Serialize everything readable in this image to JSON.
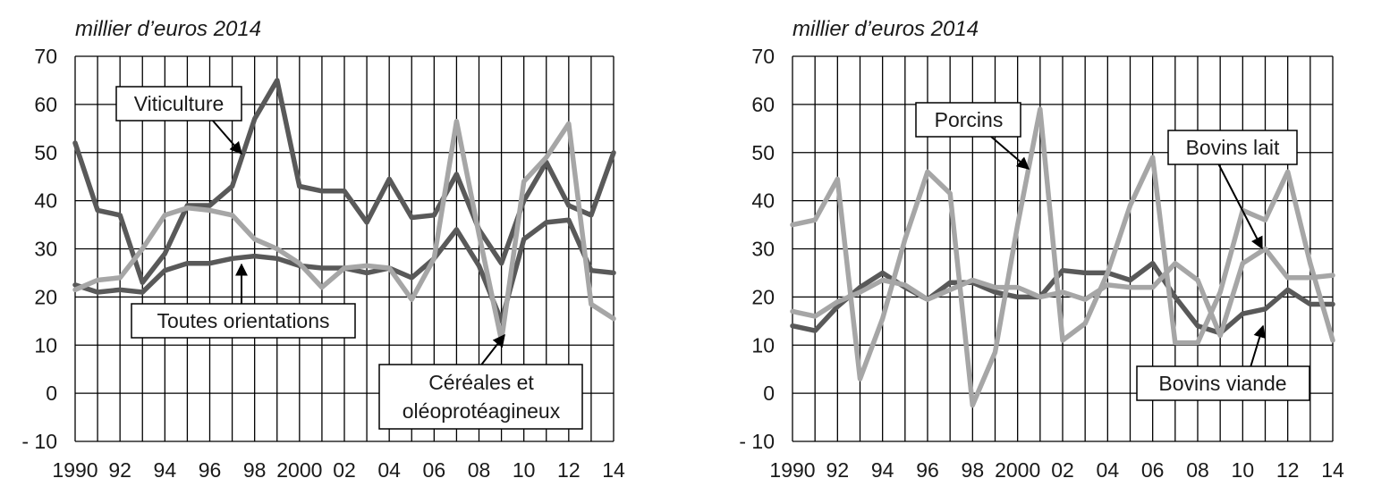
{
  "chart_data": [
    {
      "type": "line",
      "unit_label": "millier d’euros 2014",
      "x": [
        1990,
        1991,
        1992,
        1993,
        1994,
        1995,
        1996,
        1997,
        1998,
        1999,
        2000,
        2001,
        2002,
        2003,
        2004,
        2005,
        2006,
        2007,
        2008,
        2009,
        2010,
        2011,
        2012,
        2013,
        2014
      ],
      "x_tick_labels": [
        "1990",
        "",
        "92",
        "",
        "94",
        "",
        "96",
        "",
        "98",
        "",
        "2000",
        "",
        "02",
        "",
        "04",
        "",
        "06",
        "",
        "08",
        "",
        "10",
        "",
        "12",
        "",
        "14"
      ],
      "y_ticks": [
        -10,
        0,
        10,
        20,
        30,
        40,
        50,
        60,
        70
      ],
      "y_tick_labels": [
        "- 10",
        "0",
        "10",
        "20",
        "30",
        "40",
        "50",
        "60",
        "70"
      ],
      "ylim": [
        -10,
        70
      ],
      "grid": true,
      "series": [
        {
          "name": "Viticulture",
          "color": "#595959",
          "values": [
            52,
            38,
            37,
            23,
            29,
            39,
            39,
            43,
            57,
            65,
            43,
            42,
            42,
            35.5,
            44.5,
            36.5,
            37,
            45.5,
            34,
            27,
            40,
            48,
            39,
            37,
            50
          ]
        },
        {
          "name": "Toutes orientations",
          "color": "#595959",
          "values": [
            22.5,
            21,
            21.5,
            21,
            25.5,
            27,
            27,
            28,
            28.5,
            28,
            26.5,
            26,
            26,
            25,
            26,
            24,
            28,
            34,
            26.5,
            15,
            32,
            35.5,
            36,
            25.5,
            25
          ]
        },
        {
          "name": "Céréales et oléoprotéagineux",
          "color": "#a6a6a6",
          "values": [
            21.5,
            23.5,
            24,
            30,
            37,
            38.5,
            38,
            37,
            32,
            30,
            27,
            22,
            26,
            26.5,
            26,
            19.5,
            28,
            56.5,
            33,
            11,
            44,
            49,
            56,
            18.5,
            15.5
          ]
        }
      ],
      "labels": {
        "viticulture": "Viticulture",
        "toutes": "Toutes orientations",
        "cereales_line1": "Céréales et",
        "cereales_line2": "oléoprotéagineux"
      }
    },
    {
      "type": "line",
      "unit_label": "millier d’euros 2014",
      "x": [
        1990,
        1991,
        1992,
        1993,
        1994,
        1995,
        1996,
        1997,
        1998,
        1999,
        2000,
        2001,
        2002,
        2003,
        2004,
        2005,
        2006,
        2007,
        2008,
        2009,
        2010,
        2011,
        2012,
        2013,
        2014
      ],
      "x_tick_labels": [
        "1990",
        "",
        "92",
        "",
        "94",
        "",
        "96",
        "",
        "98",
        "",
        "2000",
        "",
        "02",
        "",
        "04",
        "",
        "06",
        "",
        "08",
        "",
        "10",
        "",
        "12",
        "",
        "14"
      ],
      "y_ticks": [
        -10,
        0,
        10,
        20,
        30,
        40,
        50,
        60,
        70
      ],
      "y_tick_labels": [
        "- 10",
        "0",
        "10",
        "20",
        "30",
        "40",
        "50",
        "60",
        "70"
      ],
      "ylim": [
        -10,
        70
      ],
      "grid": true,
      "series": [
        {
          "name": "Bovins viande",
          "color": "#595959",
          "values": [
            14,
            13,
            18,
            22,
            25,
            22,
            19.5,
            23,
            23,
            21,
            20,
            20,
            25.5,
            25,
            25,
            23.5,
            27,
            20,
            14,
            12.5,
            16.5,
            17.5,
            21.5,
            18.5,
            18.5
          ]
        },
        {
          "name": "Bovins lait",
          "color": "#a6a6a6",
          "values": [
            17,
            16,
            19,
            21,
            23.5,
            22.5,
            19.5,
            21.5,
            23.5,
            22,
            22,
            20,
            21,
            19.5,
            22.5,
            22,
            22,
            27,
            23.5,
            12,
            27,
            30,
            24,
            24,
            24.5
          ]
        },
        {
          "name": "Porcins",
          "color": "#a6a6a6",
          "values": [
            35,
            36,
            44.5,
            3,
            15.5,
            32,
            46,
            41.5,
            -2.5,
            8.5,
            35,
            59,
            11,
            14.5,
            25,
            39,
            49,
            10.5,
            10.5,
            21,
            38,
            36,
            46,
            27,
            11
          ]
        }
      ],
      "labels": {
        "porcins": "Porcins",
        "bovins_lait": "Bovins lait",
        "bovins_viande": "Bovins viande"
      }
    }
  ]
}
